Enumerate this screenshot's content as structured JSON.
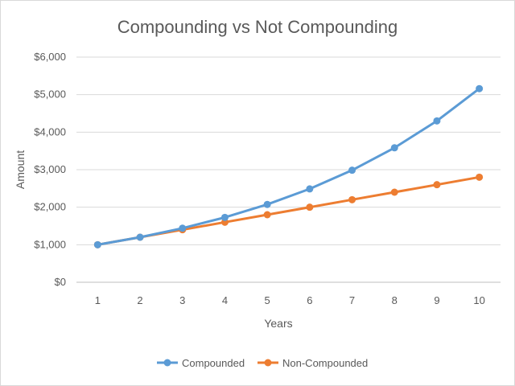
{
  "chart_data": {
    "type": "line",
    "title": "Compounding vs Not Compounding",
    "xlabel": "Years",
    "ylabel": "Amount",
    "x": [
      1,
      2,
      3,
      4,
      5,
      6,
      7,
      8,
      9,
      10
    ],
    "ylim": [
      0,
      6000
    ],
    "yticks": [
      0,
      1000,
      2000,
      3000,
      4000,
      5000,
      6000
    ],
    "ytick_labels": [
      "$0",
      "$1,000",
      "$2,000",
      "$3,000",
      "$4,000",
      "$5,000",
      "$6,000"
    ],
    "grid": "horizontal",
    "legend_position": "bottom",
    "series": [
      {
        "name": "Compounded",
        "color": "#5b9bd5",
        "values": [
          1000,
          1200,
          1440,
          1728,
          2074,
          2488,
          2986,
          3583,
          4300,
          5160
        ]
      },
      {
        "name": "Non-Compounded",
        "color": "#ed7d31",
        "values": [
          1000,
          1200,
          1400,
          1600,
          1800,
          2000,
          2200,
          2400,
          2600,
          2800
        ]
      }
    ]
  }
}
